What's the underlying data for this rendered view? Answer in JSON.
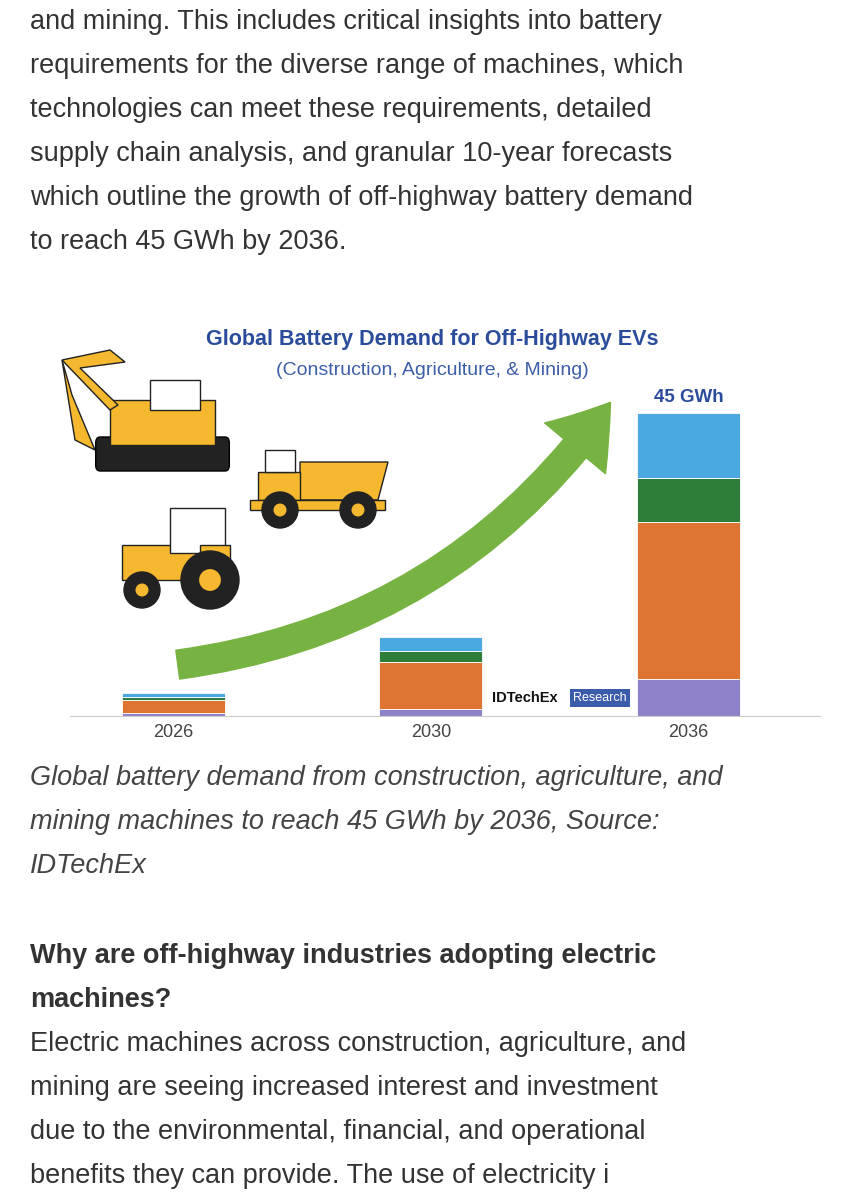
{
  "paragraph_top": [
    "and mining. This includes critical insights into battery",
    "requirements for the diverse range of machines, which",
    "technologies can meet these requirements, detailed",
    "supply chain analysis, and granular 10-year forecasts",
    "which outline the growth of off-highway battery demand",
    "to reach 45 GWh by 2036."
  ],
  "chart_data": {
    "type": "bar",
    "stacked": true,
    "title": "Global Battery Demand for Off-Highway EVs",
    "subtitle": "(Construction, Agriculture, & Mining)",
    "categories": [
      "2026",
      "2030",
      "2036"
    ],
    "series": [
      {
        "color": "#8E80C8",
        "values": [
          0.4,
          1.0,
          5.5
        ]
      },
      {
        "color": "#DD7431",
        "values": [
          2.0,
          7.0,
          23.3
        ]
      },
      {
        "color": "#2E7D3A",
        "values": [
          0.4,
          1.6,
          6.5
        ]
      },
      {
        "color": "#4BA9E1",
        "values": [
          0.6,
          2.1,
          9.7
        ]
      }
    ],
    "ylim": [
      0,
      45
    ],
    "tick_labels": "x",
    "annotations": [
      {
        "category": "2036",
        "text": "45 GWh"
      }
    ],
    "source_logo": [
      "IDTechEx",
      "Research"
    ]
  },
  "caption": [
    "Global battery demand from construction, agriculture, and",
    "mining machines to reach 45 GWh by 2036, Source:",
    "IDTechEx"
  ],
  "heading": [
    "Why are off-highway industries adopting electric",
    "machines?"
  ],
  "paragraph_bottom": [
    "Electric machines across construction, agriculture, and",
    "mining are seeing increased interest and investment",
    "due to the environmental, financial, and operational",
    "benefits they can provide. The use of electricity i"
  ]
}
